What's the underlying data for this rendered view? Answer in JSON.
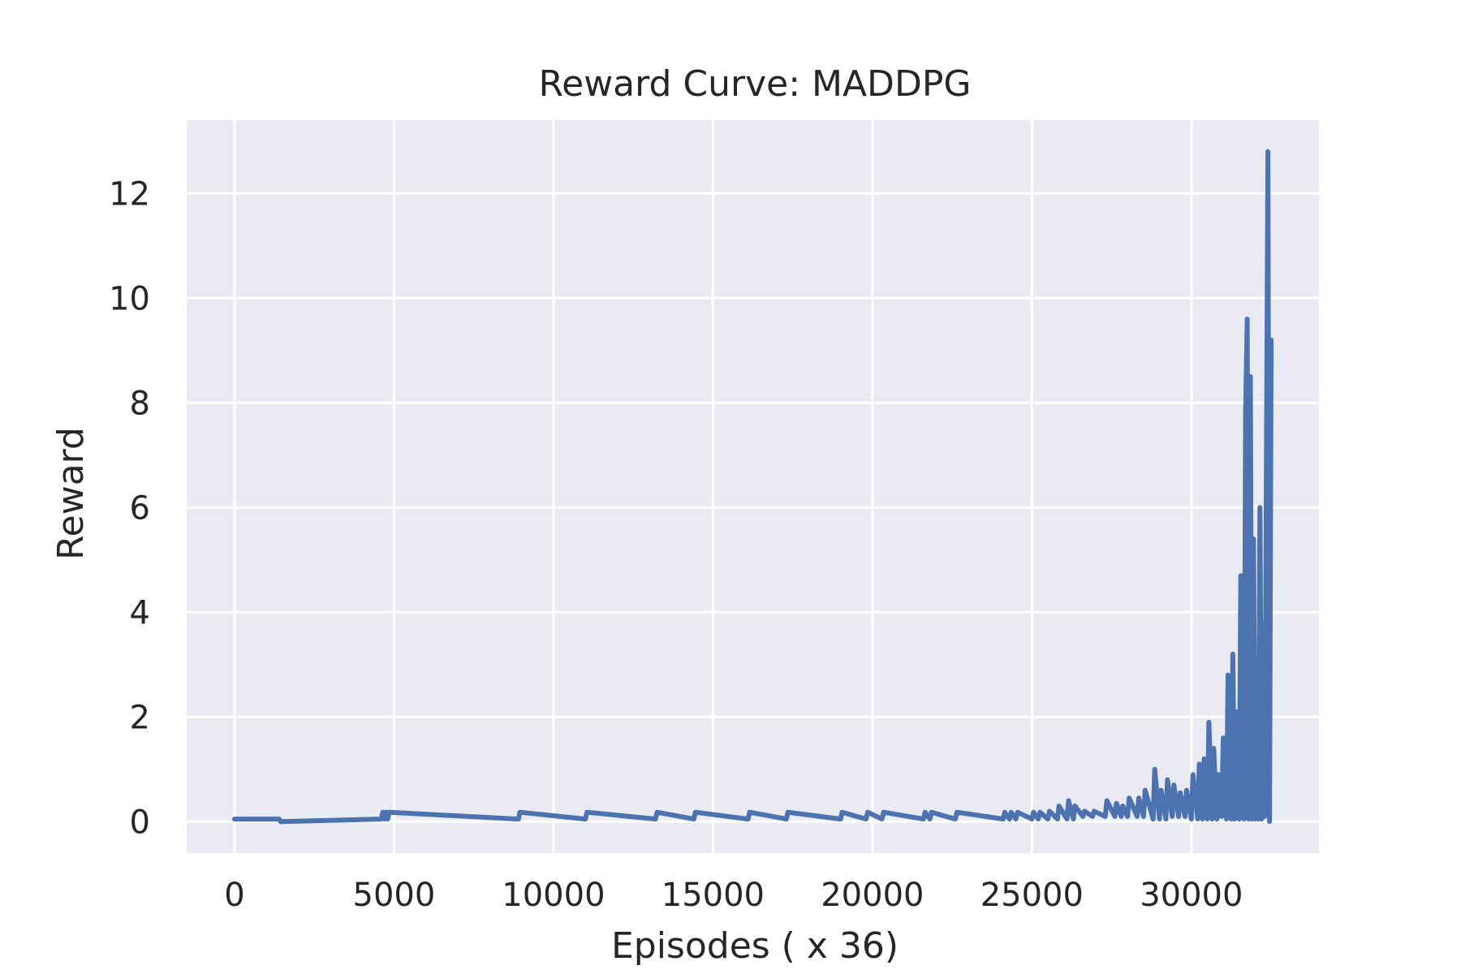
{
  "chart_data": {
    "type": "line",
    "title": "Reward Curve: MADDPG",
    "xlabel": "Episodes ( x 36)",
    "ylabel": "Reward",
    "xlim": [
      -1500,
      34000
    ],
    "ylim": [
      -0.6,
      13.4
    ],
    "xticks": [
      0,
      5000,
      10000,
      15000,
      20000,
      25000,
      30000
    ],
    "yticks": [
      0,
      2,
      4,
      6,
      8,
      10,
      12
    ],
    "grid": true,
    "legend": "none",
    "series": [
      {
        "color": "#4c72b0",
        "x": [
          0,
          1400,
          1450,
          4600,
          4650,
          4700,
          4750,
          4800,
          4850,
          8900,
          8950,
          11000,
          11050,
          13200,
          13250,
          14400,
          14450,
          16100,
          16150,
          17300,
          17350,
          19000,
          19050,
          19800,
          19850,
          20300,
          20350,
          21600,
          21650,
          21800,
          21850,
          22600,
          22650,
          24100,
          24150,
          24300,
          24350,
          24500,
          24550,
          25000,
          25050,
          25200,
          25250,
          25500,
          25550,
          25800,
          25850,
          26100,
          26150,
          26300,
          26350,
          26600,
          26650,
          26900,
          26950,
          27300,
          27350,
          27600,
          27650,
          27800,
          27850,
          28000,
          28050,
          28300,
          28350,
          28500,
          28550,
          28800,
          28850,
          29000,
          29050,
          29200,
          29250,
          29400,
          29450,
          29600,
          29650,
          29800,
          29850,
          30000,
          30050,
          30200,
          30250,
          30350,
          30400,
          30500,
          30550,
          30650,
          30700,
          30800,
          30850,
          30950,
          31000,
          31100,
          31150,
          31250,
          31300,
          31350,
          31400,
          31500,
          31550,
          31650,
          31700,
          31750,
          31800,
          31850,
          31900,
          31950,
          32000,
          32050,
          32100,
          32150,
          32200,
          32250,
          32300,
          32350,
          32400,
          32450,
          32500
        ],
        "y": [
          0.05,
          0.05,
          0.0,
          0.05,
          0.18,
          0.05,
          0.18,
          0.05,
          0.18,
          0.05,
          0.18,
          0.05,
          0.18,
          0.05,
          0.18,
          0.05,
          0.18,
          0.05,
          0.18,
          0.05,
          0.18,
          0.05,
          0.18,
          0.05,
          0.18,
          0.05,
          0.18,
          0.05,
          0.18,
          0.05,
          0.18,
          0.05,
          0.18,
          0.05,
          0.18,
          0.05,
          0.18,
          0.05,
          0.18,
          0.05,
          0.18,
          0.05,
          0.18,
          0.05,
          0.2,
          0.05,
          0.3,
          0.05,
          0.4,
          0.05,
          0.3,
          0.1,
          0.2,
          0.1,
          0.2,
          0.1,
          0.4,
          0.1,
          0.35,
          0.1,
          0.3,
          0.1,
          0.45,
          0.1,
          0.45,
          0.1,
          0.6,
          0.05,
          1.0,
          0.05,
          0.6,
          0.05,
          0.8,
          0.1,
          0.7,
          0.1,
          0.55,
          0.1,
          0.6,
          0.05,
          0.9,
          0.05,
          1.1,
          0.05,
          1.2,
          0.05,
          1.9,
          0.05,
          1.4,
          0.05,
          0.9,
          0.1,
          1.6,
          0.05,
          2.8,
          0.05,
          3.2,
          0.05,
          2.1,
          0.05,
          4.7,
          0.05,
          7.8,
          9.6,
          0.05,
          8.5,
          0.05,
          5.4,
          0.05,
          2.6,
          0.05,
          6.0,
          0.05,
          3.8,
          0.1,
          6.6,
          12.8,
          0.0,
          9.2
        ]
      }
    ]
  }
}
